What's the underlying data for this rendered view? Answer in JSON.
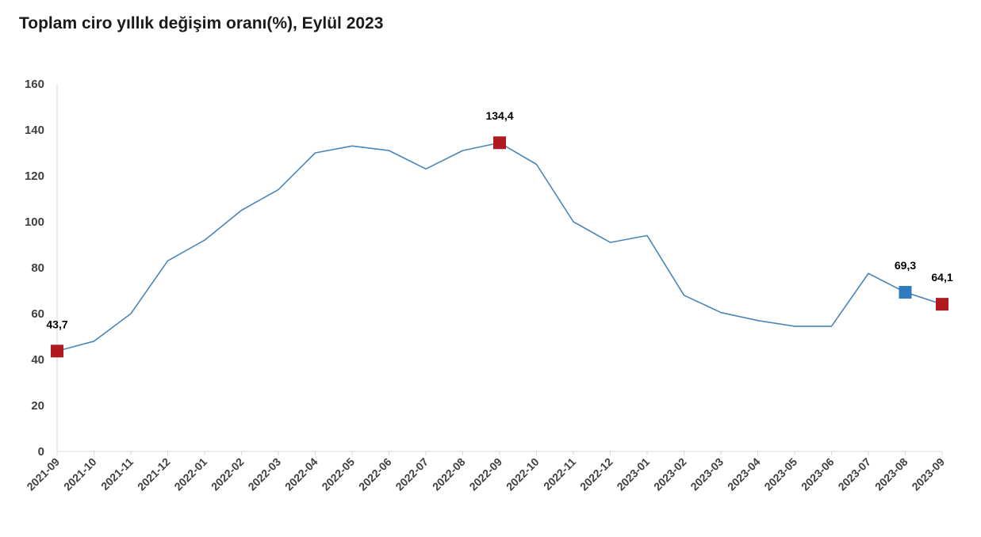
{
  "chart_data": {
    "type": "line",
    "title": "Toplam ciro yıllık değişim oranı(%), Eylül 2023",
    "xlabel": "",
    "ylabel": "",
    "ylim": [
      0,
      160
    ],
    "yticks": [
      0,
      20,
      40,
      60,
      80,
      100,
      120,
      140,
      160
    ],
    "grid": false,
    "legend": "none",
    "categories": [
      "2021-09",
      "2021-10",
      "2021-11",
      "2021-12",
      "2022-01",
      "2022-02",
      "2022-03",
      "2022-04",
      "2022-05",
      "2022-06",
      "2022-07",
      "2022-08",
      "2022-09",
      "2022-10",
      "2022-11",
      "2022-12",
      "2023-01",
      "2023-02",
      "2023-03",
      "2023-04",
      "2023-05",
      "2023-06",
      "2023-07",
      "2023-08",
      "2023-09"
    ],
    "series": [
      {
        "values": [
          43.7,
          48,
          60,
          83,
          92,
          105,
          114,
          130,
          133,
          131,
          123,
          131,
          134.4,
          125,
          100,
          91,
          94,
          68,
          60.5,
          57,
          54.5,
          54.5,
          77.5,
          69.3,
          64.1
        ],
        "color": "#4a86b8"
      }
    ],
    "highlights": [
      {
        "category": "2021-09",
        "value": 43.7,
        "label": "43,7",
        "color": "#b0191e"
      },
      {
        "category": "2022-09",
        "value": 134.4,
        "label": "134,4",
        "color": "#b0191e"
      },
      {
        "category": "2023-08",
        "value": 69.3,
        "label": "69,3",
        "color": "#2e7cbf"
      },
      {
        "category": "2023-09",
        "value": 64.1,
        "label": "64,1",
        "color": "#b0191e"
      }
    ]
  }
}
